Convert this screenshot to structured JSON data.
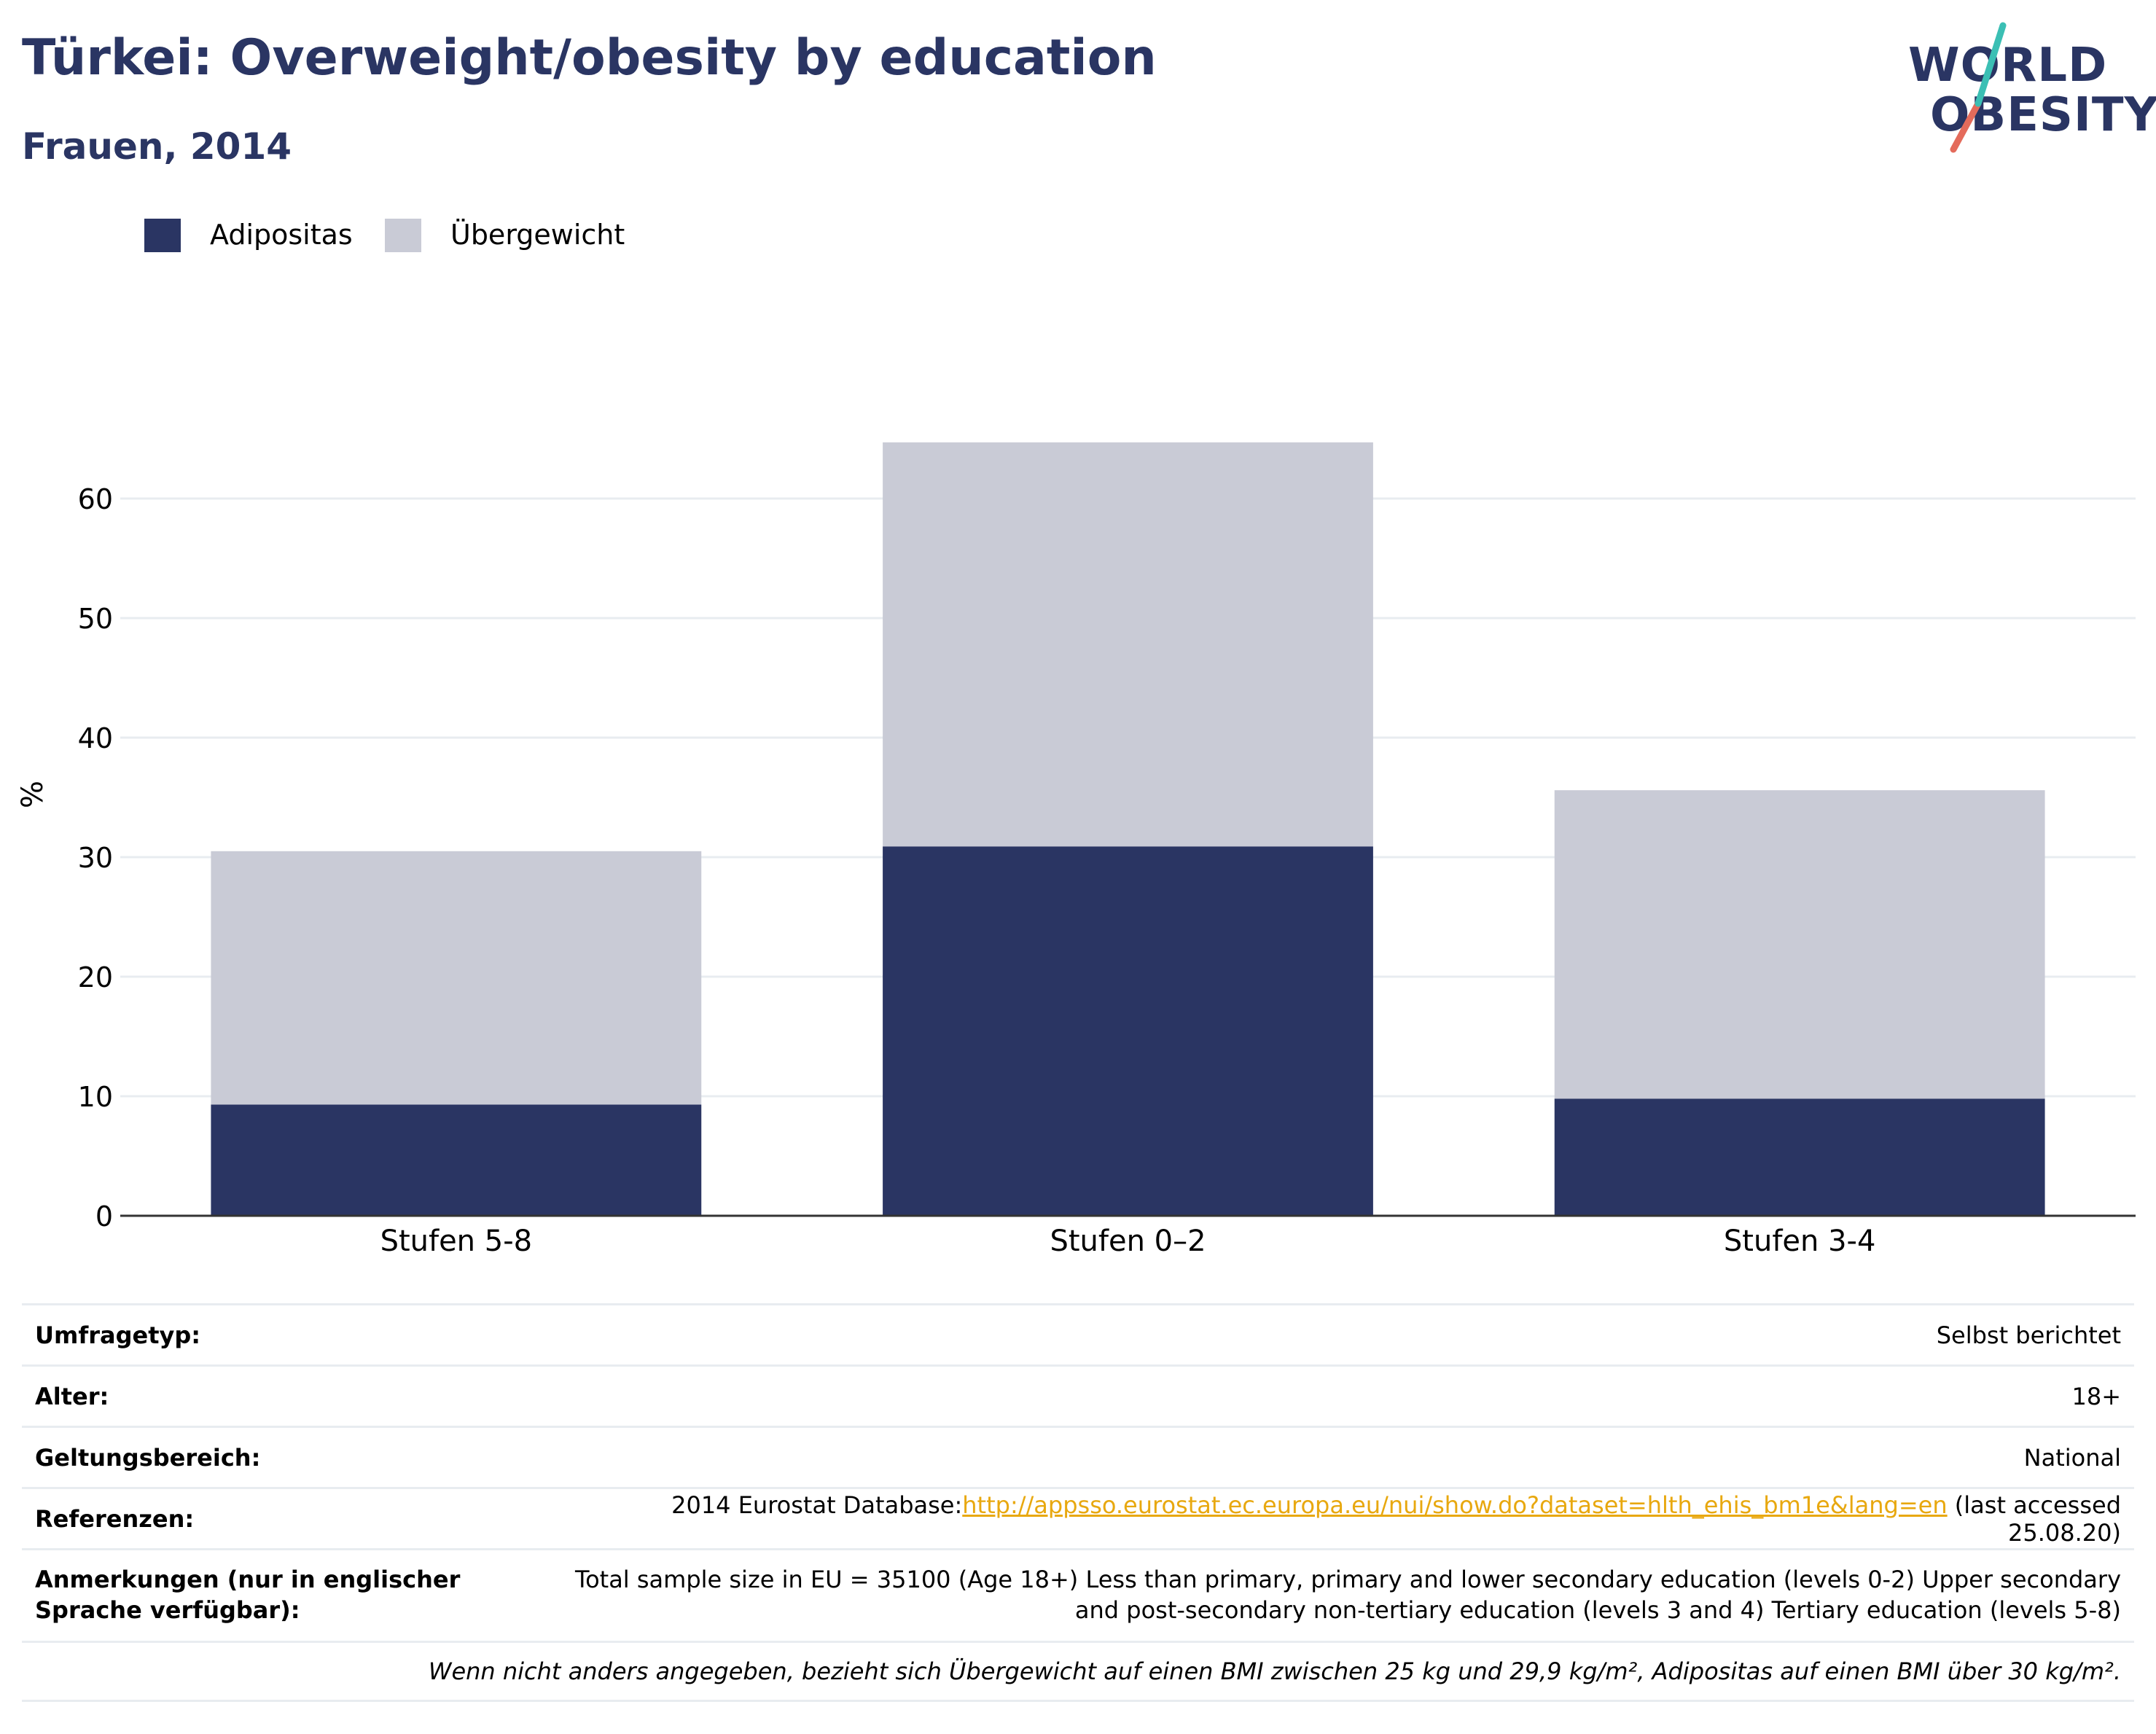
{
  "header": {
    "title": "Türkei: Overweight/obesity by education",
    "subtitle": "Frauen, 2014"
  },
  "logo": {
    "line1": "WORLD",
    "line2": "OBESITY"
  },
  "colors": {
    "adipositas": "#2a3563",
    "uebergewicht": "#c9cbd6",
    "title": "#2a3563",
    "link": "#e8a80f",
    "logo_teal": "#3bbfb4",
    "logo_coral": "#e46b5b"
  },
  "chart_data": {
    "type": "bar",
    "stacked": true,
    "categories": [
      "Stufen 5-8",
      "Stufen 0–2",
      "Stufen 3-4"
    ],
    "series": [
      {
        "name": "Adipositas",
        "values": [
          9.3,
          30.9,
          9.8
        ]
      },
      {
        "name": "Übergewicht",
        "values": [
          21.2,
          33.8,
          25.8
        ]
      }
    ],
    "ylabel": "%",
    "ylim": [
      0,
      70
    ],
    "yticks": [
      0,
      10,
      20,
      30,
      40,
      50,
      60
    ],
    "grid": true,
    "legend_position": "top-left"
  },
  "meta": {
    "survey_type": {
      "label": "Umfragetyp:",
      "value": "Selbst berichtet"
    },
    "age": {
      "label": "Alter:",
      "value": "18+"
    },
    "scope": {
      "label": "Geltungsbereich:",
      "value": "National"
    },
    "references": {
      "label": "Referenzen:",
      "prefix": "2014 Eurostat Database:",
      "link": "http://appsso.eurostat.ec.europa.eu/nui/show.do?dataset=hlth_ehis_bm1e&lang=en",
      "suffix": " (last accessed 25.08.20)"
    },
    "notes": {
      "label": "Anmerkungen (nur in englischer Sprache verfügbar):",
      "value": "Total sample size in EU = 35100 (Age 18+) Less than primary, primary and lower secondary education (levels 0-2) Upper secondary and post-secondary non-tertiary education (levels 3 and 4) Tertiary education (levels 5-8)"
    },
    "footnote": "Wenn nicht anders angegeben, bezieht sich Übergewicht auf einen BMI zwischen 25 kg und 29,9 kg/m², Adipositas auf einen BMI über 30 kg/m²."
  }
}
